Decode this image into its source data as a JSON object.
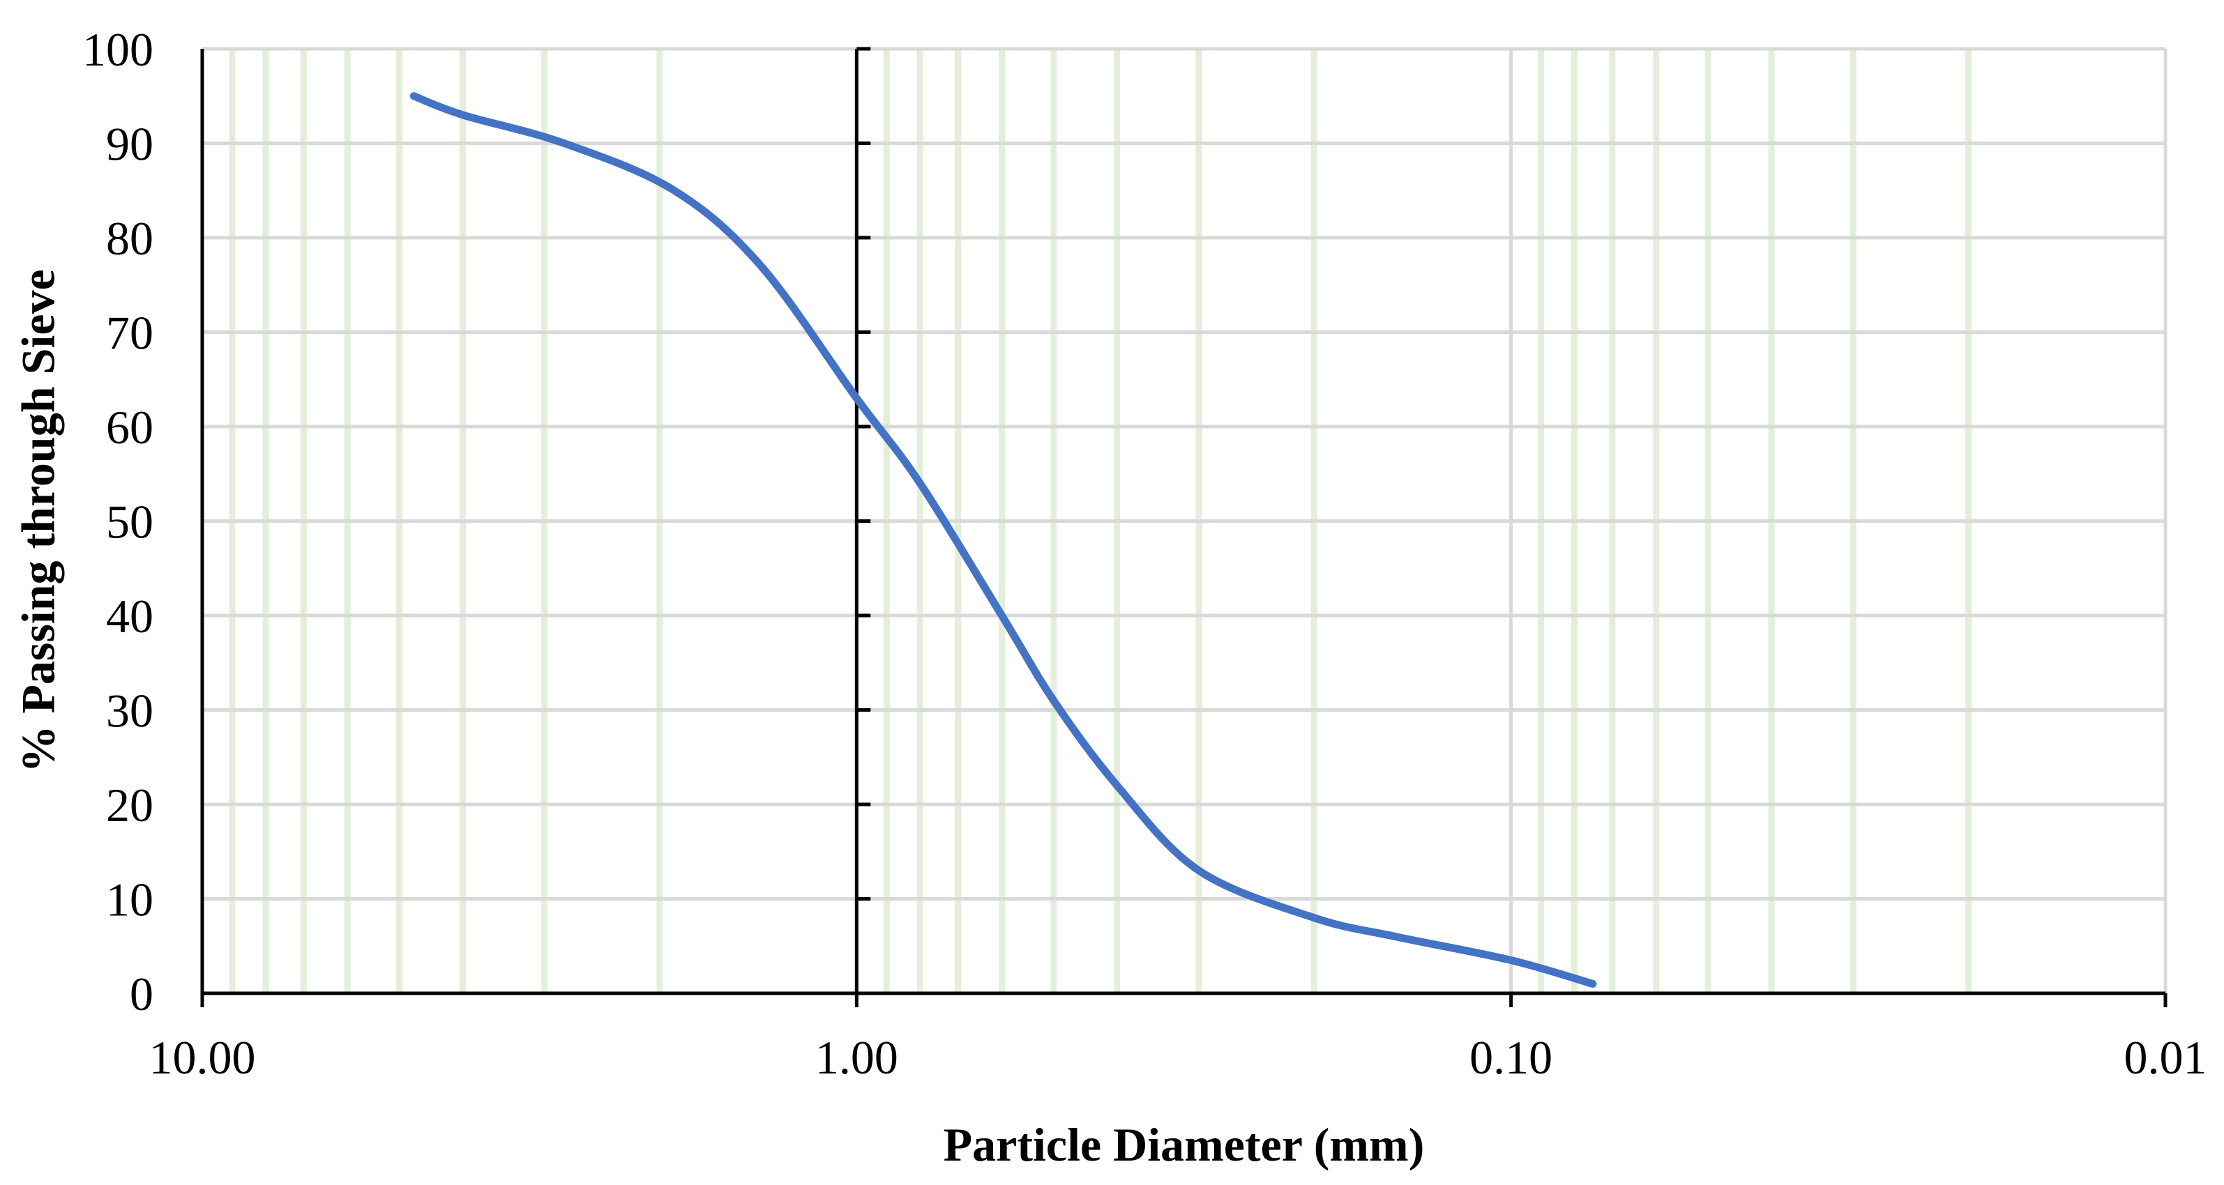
{
  "chart_data": {
    "type": "line",
    "title": "",
    "xlabel": "Particle Diameter (mm)",
    "ylabel": "% Passing through Sieve",
    "x_scale": "log",
    "x_reversed": true,
    "xlim": [
      10,
      0.01
    ],
    "ylim": [
      0,
      100
    ],
    "xticks": [
      10,
      1,
      0.1,
      0.01
    ],
    "xtick_labels": [
      "10.00",
      "1.00",
      "0.10",
      "0.01"
    ],
    "yticks": [
      0,
      10,
      20,
      30,
      40,
      50,
      60,
      70,
      80,
      90,
      100
    ],
    "ytick_labels": [
      "0",
      "10",
      "20",
      "30",
      "40",
      "50",
      "60",
      "70",
      "80",
      "90",
      "100"
    ],
    "grid": true,
    "legend": "none",
    "line_color": "#4472C4",
    "gridline_color": "#D9D9D9",
    "minor_gridline_color": "#E2EFDA",
    "series": [
      {
        "x": [
          4.75,
          4.0,
          2.8,
          1.9,
          1.4,
          1.0,
          0.8,
          0.6,
          0.5,
          0.4,
          0.3,
          0.2,
          0.15,
          0.1,
          0.075
        ],
        "values": [
          95,
          93,
          90,
          85,
          77,
          63,
          54,
          40,
          31,
          22,
          13,
          8,
          6,
          3.5,
          1
        ]
      }
    ]
  }
}
